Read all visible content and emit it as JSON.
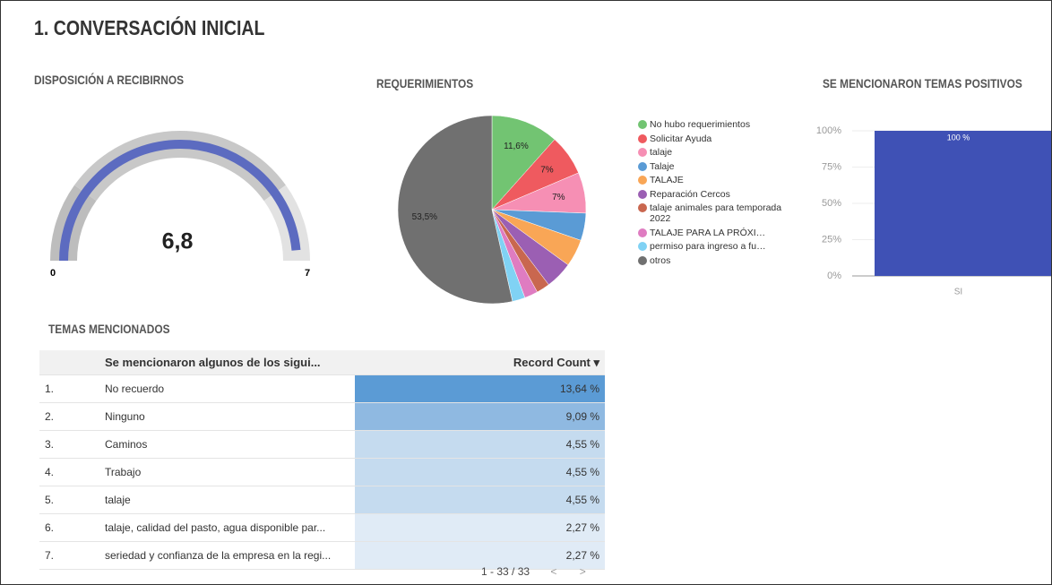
{
  "page": {
    "title": "1. CONVERSACIÓN INICIAL"
  },
  "chart_data": [
    {
      "type": "gauge",
      "title": "DISPOSICIÓN A RECIBIRNOS",
      "value": 6.8,
      "value_label": "6,8",
      "min": 0,
      "max": 7,
      "color": "#5c6bc0"
    },
    {
      "type": "pie",
      "title": "REQUERIMIENTOS",
      "categories": [
        "No hubo requerimientos",
        "Solicitar Ayuda",
        "talaje",
        "Talaje",
        "TALAJE",
        "Reparación Cercos",
        "talaje animales para temporada 2022",
        "TALAJE PARA LA PRÓXI…",
        "permiso para ingreso a fu…",
        "otros"
      ],
      "values": [
        11.6,
        7,
        7,
        4.7,
        4.7,
        4.7,
        2.3,
        2.3,
        2.2,
        53.5
      ],
      "value_labels": [
        "11,6%",
        "7%",
        "7%",
        null,
        null,
        null,
        null,
        null,
        null,
        "53,5%"
      ],
      "colors": [
        "#72c472",
        "#ef5a5f",
        "#f68fb4",
        "#5a9bd5",
        "#f9a656",
        "#9b5fb3",
        "#c9674f",
        "#df7cc1",
        "#80d2f4",
        "#707070"
      ]
    },
    {
      "type": "bar",
      "title": "SE MENCIONARON TEMAS POSITIVOS",
      "categories": [
        "SI"
      ],
      "values": [
        100
      ],
      "value_labels": [
        "100 %"
      ],
      "color": "#3f51b5",
      "ylim": [
        0,
        100
      ],
      "yticks": [
        {
          "value": 0,
          "label": "0%"
        },
        {
          "value": 25,
          "label": "25%"
        },
        {
          "value": 50,
          "label": "50%"
        },
        {
          "value": 75,
          "label": "75%"
        },
        {
          "value": 100,
          "label": "100%"
        }
      ],
      "grid": true
    }
  ],
  "table": {
    "title": "TEMAS MENCIONADOS",
    "columns": [
      "Se mencionaron algunos de los sigui...",
      "Record Count"
    ],
    "rows": [
      [
        "1.",
        "No recuerdo",
        "13,64 %"
      ],
      [
        "2.",
        "Ninguno",
        "9,09 %"
      ],
      [
        "3.",
        "Caminos",
        "4,55 %"
      ],
      [
        "4.",
        "Trabajo",
        "4,55 %"
      ],
      [
        "5.",
        "talaje",
        "4,55 %"
      ],
      [
        "6.",
        "talaje, calidad del pasto, agua disponible par...",
        "2,27 %"
      ],
      [
        "7.",
        "seriedad y confianza de la empresa en la regi...",
        "2,27 %"
      ]
    ],
    "shades": [
      "#5b9bd5",
      "#8fb9e1",
      "#c5dbef",
      "#c5dbef",
      "#c5dbef",
      "#e0ebf6",
      "#e0ebf6"
    ],
    "pagination": "1 - 33 / 33"
  }
}
